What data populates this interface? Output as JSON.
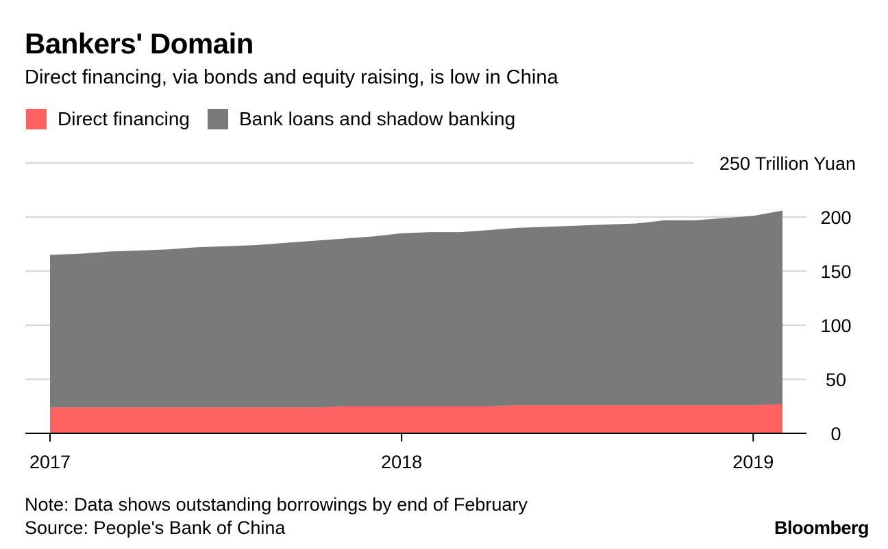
{
  "title": "Bankers' Domain",
  "subtitle": "Direct financing, via bonds and equity raising, is low in China",
  "note": "Note: Data shows outstanding borrowings by end of February",
  "source": "Source: People's Bank of China",
  "logo": "Bloomberg",
  "chart_data": {
    "type": "area",
    "stacked": true,
    "y_unit_label": "250 Trillion Yuan",
    "ylim": [
      0,
      250
    ],
    "yticks": [
      0,
      50,
      100,
      150,
      200,
      250
    ],
    "ytick_labels": [
      "0",
      "50",
      "100",
      "150",
      "200",
      "250 Trillion Yuan"
    ],
    "xticks": [
      "2017",
      "2018",
      "2019"
    ],
    "x_range": [
      "2017-01",
      "2019-03"
    ],
    "x": [
      "2017-01",
      "2017-02",
      "2017-03",
      "2017-04",
      "2017-05",
      "2017-06",
      "2017-07",
      "2017-08",
      "2017-09",
      "2017-10",
      "2017-11",
      "2017-12",
      "2018-01",
      "2018-02",
      "2018-03",
      "2018-04",
      "2018-05",
      "2018-06",
      "2018-07",
      "2018-08",
      "2018-09",
      "2018-10",
      "2018-11",
      "2018-12",
      "2019-01",
      "2019-02"
    ],
    "legend_position": "top-left",
    "grid": true,
    "series": [
      {
        "name": "Direct financing",
        "color": "#ff6361",
        "values": [
          24,
          24,
          24,
          24,
          24,
          24,
          24,
          24,
          24,
          24,
          25,
          25,
          25,
          25,
          25,
          25,
          26,
          26,
          26,
          26,
          26,
          26,
          26,
          26,
          26,
          27
        ]
      },
      {
        "name": "Bank loans and shadow banking",
        "color": "#7a7a7a",
        "values": [
          141,
          142,
          144,
          145,
          146,
          148,
          149,
          150,
          152,
          154,
          155,
          157,
          160,
          161,
          161,
          163,
          164,
          165,
          166,
          167,
          168,
          171,
          171,
          173,
          175,
          179
        ]
      }
    ]
  }
}
